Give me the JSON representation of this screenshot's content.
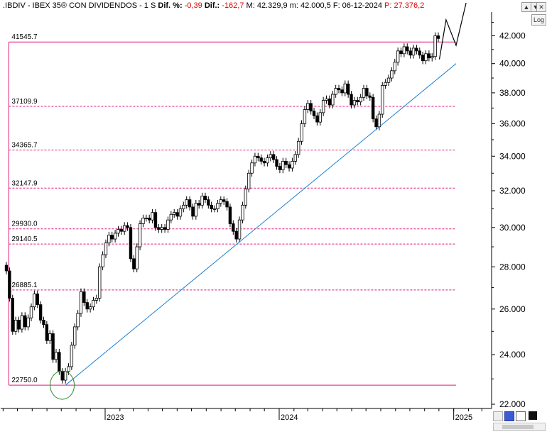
{
  "header": {
    "symbol": ".IBDIV - IBEX 35® CON DIVIDENDOS - 1 S",
    "dif_pct_label": "Dif. %:",
    "dif_pct_value": "-0,39",
    "dif_label": "Dif.:",
    "dif_value": "-162,7",
    "stats": "M: 42.329,9 m: 42.000,5 F: 06-12-2024",
    "p_value": "P: 27.376,2"
  },
  "controls": {
    "log_label": "Log",
    "btn_up": "▲",
    "btn_down": "▼",
    "btn_close": "✕"
  },
  "colors": {
    "candle": "#000000",
    "fib": "#e0197d",
    "trendline": "#1e7fd0",
    "circle": "#2e8b2e",
    "header_red": "#e00000"
  },
  "chart_data": {
    "type": "candlestick",
    "title": ".IBDIV - IBEX 35® CON DIVIDENDOS - 1 S",
    "y_axis": {
      "scale": "log",
      "range": [
        21800,
        43500
      ],
      "ticks": [
        22000,
        24000,
        26000,
        28000,
        30000,
        32000,
        34000,
        36000,
        38000,
        40000,
        42000
      ],
      "tick_labels": [
        "22.000",
        "24.000",
        "26.000",
        "28.000",
        "30.000",
        "32.000",
        "34.000",
        "36.000",
        "38.000",
        "40.000",
        "42.000"
      ]
    },
    "x_axis": {
      "ticks": [
        "2023-01-01",
        "2024-01-01",
        "2025-01-01"
      ],
      "tick_labels": [
        "2023",
        "2024",
        "2025"
      ],
      "range": [
        "2022-03-14",
        "2025-06-01"
      ]
    },
    "fib_levels": [
      {
        "value": 41545.7,
        "label": "41545.7",
        "style": "solid"
      },
      {
        "value": 37109.9,
        "label": "37109.9",
        "style": "dashed"
      },
      {
        "value": 34365.7,
        "label": "34365.7",
        "style": "dashed"
      },
      {
        "value": 32147.9,
        "label": "32147.9",
        "style": "dashed"
      },
      {
        "value": 29930.0,
        "label": "29930.0",
        "style": "dashed"
      },
      {
        "value": 29140.5,
        "label": "29140.5",
        "style": "dashed"
      },
      {
        "value": 26885.1,
        "label": "26885.1",
        "style": "dashed"
      },
      {
        "value": 22750.0,
        "label": "22750.0",
        "style": "solid"
      }
    ],
    "fib_range": {
      "start": "2022-06-13",
      "end": "2025-01-06"
    },
    "trendline": {
      "from": [
        "2022-10-10",
        22750
      ],
      "to": [
        "2025-01-06",
        40000
      ]
    },
    "projection": [
      [
        "2024-12-02",
        40300
      ],
      [
        "2024-12-16",
        43200
      ],
      [
        "2025-01-06",
        41300
      ],
      [
        "2025-01-27",
        44500
      ]
    ],
    "low_marker": {
      "date": "2022-10-03",
      "value": 22750
    },
    "series": [
      {
        "closes": [
          27800,
          26500,
          25000,
          25500,
          25100,
          25700,
          25200,
          25600,
          26100,
          26700,
          26200,
          25500,
          25300,
          24600,
          24900,
          23800,
          24100,
          23300,
          22950,
          23300,
          23500,
          24400,
          25200,
          25800,
          26800,
          26300,
          26000,
          26100,
          26400,
          26500,
          28000,
          28600,
          29200,
          29600,
          29400,
          29700,
          29900,
          29800,
          30100,
          30000,
          28400,
          27900,
          29000,
          30200,
          30500,
          30500,
          30400,
          30800,
          30000,
          29900,
          30000,
          29900,
          30400,
          30700,
          30800,
          30600,
          31000,
          31200,
          31500,
          31100,
          30600,
          31300,
          31200,
          31700,
          31500,
          31200,
          31000,
          31000,
          31300,
          31500,
          31400,
          31100,
          30200,
          29800,
          29400,
          30400,
          31200,
          32100,
          33000,
          33600,
          34000,
          33900,
          33700,
          33600,
          33900,
          34100,
          33800,
          33400,
          33200,
          33700,
          33500,
          33300,
          33700,
          34100,
          34900,
          36000,
          36900,
          37300,
          36800,
          36500,
          36100,
          36700,
          37500,
          37600,
          37200,
          37900,
          38300,
          38200,
          38000,
          38600,
          37900,
          37200,
          37500,
          37400,
          37700,
          38300,
          37800,
          37700,
          36300,
          35800,
          36600,
          38500,
          38700,
          39000,
          39500,
          40100,
          40900,
          40700,
          41200,
          40900,
          40600,
          41100,
          40900,
          40600,
          40200,
          40700,
          40400,
          40500,
          42000,
          41800
        ]
      }
    ]
  }
}
